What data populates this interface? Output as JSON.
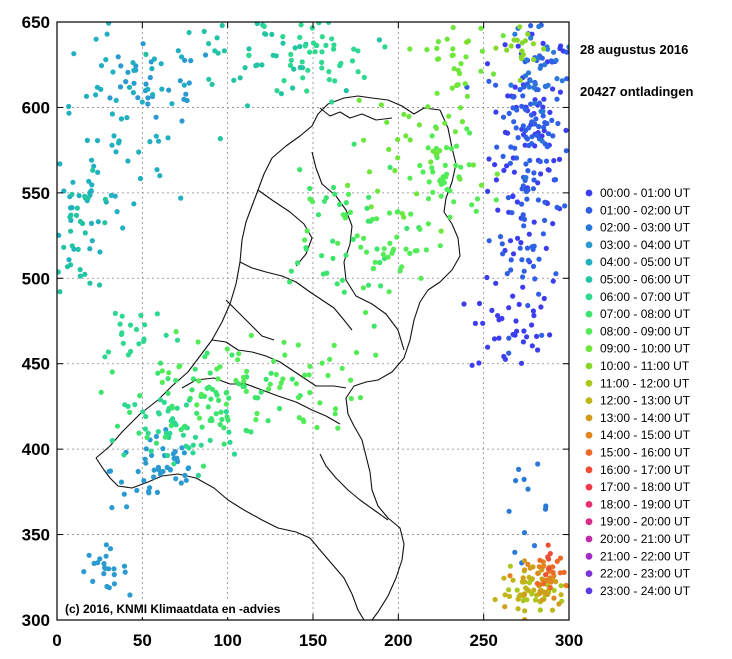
{
  "header": {
    "date": "28 augustus 2016",
    "count": "20427 ontladingen"
  },
  "credit": "(c) 2016, KNMI Klimaatdata en -advies",
  "chart_data": {
    "type": "scatter",
    "title": "",
    "xlabel": "",
    "ylabel": "",
    "xlim": [
      0,
      300
    ],
    "ylim": [
      300,
      650
    ],
    "xticks": [
      "0",
      "50",
      "100",
      "150",
      "200",
      "250",
      "300"
    ],
    "yticks": [
      "300",
      "350",
      "400",
      "450",
      "500",
      "550",
      "600",
      "650"
    ],
    "grid": true,
    "legend_position": "right",
    "series": [
      {
        "name": "00:00 - 01:00 UT",
        "color": "#3c3cf0",
        "clusters": [
          {
            "cx": 277,
            "cy": 573,
            "sx": 12,
            "sy": 42,
            "n": 90
          },
          {
            "cx": 266,
            "cy": 470,
            "sx": 12,
            "sy": 14,
            "n": 35
          }
        ]
      },
      {
        "name": "01:00 - 02:00 UT",
        "color": "#2f5fe6",
        "clusters": [
          {
            "cx": 275,
            "cy": 560,
            "sx": 10,
            "sy": 45,
            "n": 90
          },
          {
            "cx": 282,
            "cy": 610,
            "sx": 10,
            "sy": 22,
            "n": 40
          }
        ]
      },
      {
        "name": "02:00 - 03:00 UT",
        "color": "#2a78d8",
        "clusters": [
          {
            "cx": 284,
            "cy": 620,
            "sx": 9,
            "sy": 18,
            "n": 30
          },
          {
            "cx": 275,
            "cy": 365,
            "sx": 7,
            "sy": 12,
            "n": 12
          }
        ]
      },
      {
        "name": "03:00 - 04:00 UT",
        "color": "#2a9ad0",
        "clusters": [
          {
            "cx": 27,
            "cy": 330,
            "sx": 7,
            "sy": 6,
            "n": 22
          },
          {
            "cx": 60,
            "cy": 388,
            "sx": 14,
            "sy": 12,
            "n": 45
          },
          {
            "cx": 55,
            "cy": 612,
            "sx": 20,
            "sy": 12,
            "n": 30
          }
        ]
      },
      {
        "name": "04:00 - 05:00 UT",
        "color": "#20b0c0",
        "clusters": [
          {
            "cx": 40,
            "cy": 590,
            "sx": 22,
            "sy": 28,
            "n": 55
          },
          {
            "cx": 20,
            "cy": 545,
            "sx": 12,
            "sy": 20,
            "n": 30
          }
        ]
      },
      {
        "name": "05:00 - 06:00 UT",
        "color": "#22c4a4",
        "clusters": [
          {
            "cx": 15,
            "cy": 525,
            "sx": 10,
            "sy": 16,
            "n": 30
          },
          {
            "cx": 110,
            "cy": 630,
            "sx": 25,
            "sy": 12,
            "n": 40
          }
        ]
      },
      {
        "name": "06:00 - 07:00 UT",
        "color": "#2ed890",
        "clusters": [
          {
            "cx": 150,
            "cy": 630,
            "sx": 18,
            "sy": 12,
            "n": 45
          },
          {
            "cx": 70,
            "cy": 410,
            "sx": 18,
            "sy": 14,
            "n": 45
          },
          {
            "cx": 45,
            "cy": 470,
            "sx": 12,
            "sy": 10,
            "n": 20
          }
        ]
      },
      {
        "name": "07:00 - 08:00 UT",
        "color": "#3ce46e",
        "clusters": [
          {
            "cx": 90,
            "cy": 430,
            "sx": 22,
            "sy": 14,
            "n": 70
          },
          {
            "cx": 160,
            "cy": 520,
            "sx": 22,
            "sy": 25,
            "n": 40
          }
        ]
      },
      {
        "name": "08:00 - 09:00 UT",
        "color": "#52ec56",
        "clusters": [
          {
            "cx": 120,
            "cy": 440,
            "sx": 30,
            "sy": 15,
            "n": 60
          },
          {
            "cx": 190,
            "cy": 520,
            "sx": 20,
            "sy": 18,
            "n": 45
          },
          {
            "cx": 230,
            "cy": 560,
            "sx": 12,
            "sy": 15,
            "n": 40
          }
        ]
      },
      {
        "name": "09:00 - 10:00 UT",
        "color": "#6ee63a",
        "clusters": [
          {
            "cx": 215,
            "cy": 580,
            "sx": 20,
            "sy": 20,
            "n": 40
          },
          {
            "cx": 230,
            "cy": 630,
            "sx": 12,
            "sy": 10,
            "n": 25
          }
        ]
      },
      {
        "name": "10:00 - 11:00 UT",
        "color": "#88d82c",
        "clusters": [
          {
            "cx": 270,
            "cy": 635,
            "sx": 10,
            "sy": 8,
            "n": 18
          }
        ]
      },
      {
        "name": "11:00 - 12:00 UT",
        "color": "#a8c81c",
        "clusters": [
          {
            "cx": 280,
            "cy": 318,
            "sx": 9,
            "sy": 6,
            "n": 25
          }
        ]
      },
      {
        "name": "12:00 - 13:00 UT",
        "color": "#c0b418",
        "clusters": [
          {
            "cx": 279,
            "cy": 315,
            "sx": 10,
            "sy": 6,
            "n": 30
          }
        ]
      },
      {
        "name": "13:00 - 14:00 UT",
        "color": "#d09c1a",
        "clusters": [
          {
            "cx": 285,
            "cy": 320,
            "sx": 8,
            "sy": 7,
            "n": 20
          }
        ]
      },
      {
        "name": "14:00 - 15:00 UT",
        "color": "#e28420",
        "clusters": [
          {
            "cx": 288,
            "cy": 325,
            "sx": 6,
            "sy": 6,
            "n": 18
          }
        ]
      },
      {
        "name": "15:00 - 16:00 UT",
        "color": "#ec6a26",
        "clusters": [
          {
            "cx": 290,
            "cy": 330,
            "sx": 4,
            "sy": 5,
            "n": 10
          }
        ]
      },
      {
        "name": "16:00 - 17:00 UT",
        "color": "#f04e34",
        "clusters": [
          {
            "cx": 289,
            "cy": 335,
            "sx": 3,
            "sy": 4,
            "n": 6
          }
        ]
      },
      {
        "name": "17:00 - 18:00 UT",
        "color": "#f03a4a",
        "clusters": []
      },
      {
        "name": "18:00 - 19:00 UT",
        "color": "#e8306a",
        "clusters": []
      },
      {
        "name": "19:00 - 20:00 UT",
        "color": "#d82a88",
        "clusters": []
      },
      {
        "name": "20:00 - 21:00 UT",
        "color": "#c02aa8",
        "clusters": []
      },
      {
        "name": "21:00 - 22:00 UT",
        "color": "#a02cc4",
        "clusters": []
      },
      {
        "name": "22:00 - 23:00 UT",
        "color": "#7c34d8",
        "clusters": []
      },
      {
        "name": "23:00 - 24:00 UT",
        "color": "#5a3ae6",
        "clusters": []
      }
    ]
  }
}
